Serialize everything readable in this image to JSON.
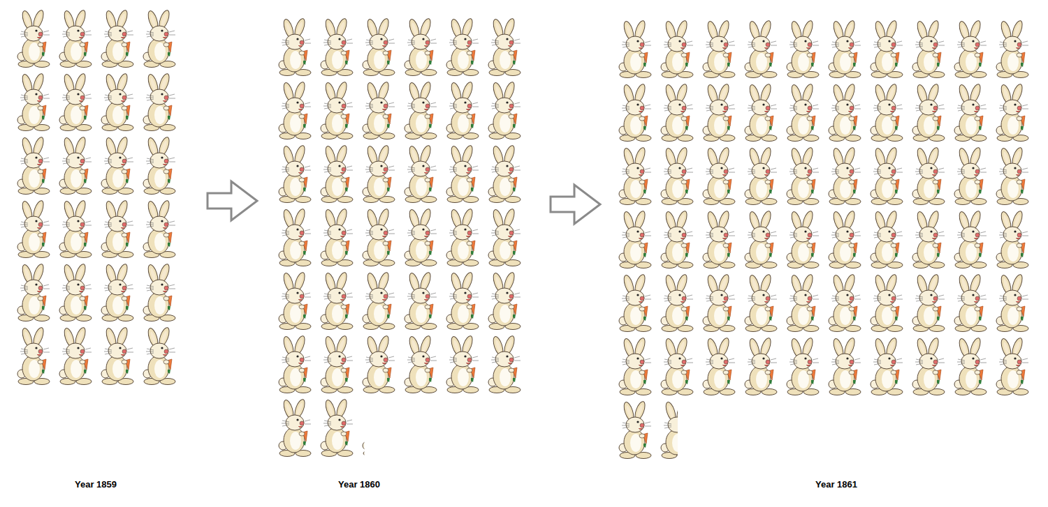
{
  "chart_data": {
    "type": "pictograph",
    "categories": [
      "Year 1859",
      "Year 1860",
      "Year 1861"
    ],
    "values": [
      24,
      38.1,
      61.5
    ]
  }
}
